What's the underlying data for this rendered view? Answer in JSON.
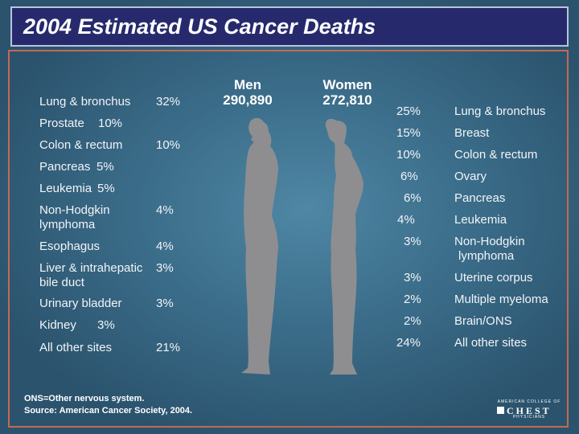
{
  "title": "2004 Estimated US Cancer Deaths",
  "men": {
    "label": "Men",
    "total": "290,890"
  },
  "women": {
    "label": "Women",
    "total": "272,810"
  },
  "chart_data": {
    "type": "table",
    "title": "2004 Estimated US Cancer Deaths",
    "series": [
      {
        "name": "Men",
        "total": 290890,
        "rows": [
          {
            "site": "Lung & bronchus",
            "percent": "32%",
            "value": 32
          },
          {
            "site": "Prostate",
            "percent": "10%",
            "value": 10
          },
          {
            "site": "Colon & rectum",
            "percent": "10%",
            "value": 10
          },
          {
            "site": "Pancreas",
            "percent": "5%",
            "value": 5
          },
          {
            "site": "Leukemia",
            "percent": "5%",
            "value": 5
          },
          {
            "site": "Non-Hodgkin lymphoma",
            "site_lines": [
              "Non-Hodgkin",
              "lymphoma"
            ],
            "percent": "4%",
            "value": 4
          },
          {
            "site": "Esophagus",
            "percent": "4%",
            "value": 4
          },
          {
            "site": "Liver & intrahepatic bile duct",
            "site_lines": [
              "Liver & intrahepatic",
              "bile duct"
            ],
            "percent": "3%",
            "value": 3
          },
          {
            "site": "Urinary bladder",
            "percent": "3%",
            "value": 3
          },
          {
            "site": "Kidney",
            "percent": "3%",
            "value": 3
          },
          {
            "site": "All other sites",
            "percent": "21%",
            "value": 21
          }
        ]
      },
      {
        "name": "Women",
        "total": 272810,
        "rows": [
          {
            "site": "Lung & bronchus",
            "percent": "25%",
            "value": 25
          },
          {
            "site": "Breast",
            "percent": "15%",
            "value": 15
          },
          {
            "site": "Colon & rectum",
            "percent": "10%",
            "value": 10
          },
          {
            "site": "Ovary",
            "percent": "6%",
            "value": 6
          },
          {
            "site": "Pancreas",
            "percent": "6%",
            "value": 6
          },
          {
            "site": "Leukemia",
            "percent": "4%",
            "value": 4
          },
          {
            "site": "Non-Hodgkin lymphoma",
            "site_lines": [
              "Non-Hodgkin",
              "lymphoma"
            ],
            "percent": "3%",
            "value": 3
          },
          {
            "site": "Uterine corpus",
            "percent": "3%",
            "value": 3
          },
          {
            "site": "Multiple myeloma",
            "percent": "2%",
            "value": 2
          },
          {
            "site": "Brain/ONS",
            "percent": "2%",
            "value": 2
          },
          {
            "site": "All other sites",
            "percent": "24%",
            "value": 24
          }
        ]
      }
    ]
  },
  "footnote": "ONS=Other nervous system.",
  "source": "Source: American Cancer Society, 2004.",
  "logo": {
    "top": "AMERICAN COLLEGE OF",
    "main": "CHEST",
    "bottom": "PHYSICIANS"
  },
  "colors": {
    "background": "#2f5a75",
    "title_bar": "#262a6d",
    "frame": "#c26a4f",
    "silhouette": "#8e8e90"
  }
}
